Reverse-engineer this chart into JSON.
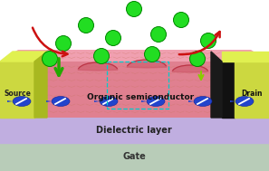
{
  "gate_color": "#b8ccb8",
  "gate_label": "Gate",
  "dielectric_color": "#c0aee0",
  "dielectric_label": "Dielectric layer",
  "osc_color_main": "#e08090",
  "osc_color_top": "#f0a0b0",
  "osc_color_side": "#d07080",
  "osc_label": "Organic semiconductor",
  "source_face_color": "#ccd840",
  "source_top_color": "#e0f050",
  "source_side_color": "#a8b820",
  "source_label": "Source",
  "drain_face_color": "#ccd840",
  "drain_top_color": "#e0f050",
  "drain_side_color": "#a8b820",
  "drain_black_color": "#111111",
  "drain_label": "Drain",
  "molecule_color": "#22dd22",
  "molecule_edge": "#008800",
  "arrow_red": "#cc1111",
  "arrow_green_big": "#22aa00",
  "arrow_green_small": "#88cc00",
  "charge_blue": "#2244cc",
  "charge_dark": "#112299",
  "cyan_box": "#00cccc",
  "texture_color": "#cc7766",
  "bowl_color": "#cc5566"
}
